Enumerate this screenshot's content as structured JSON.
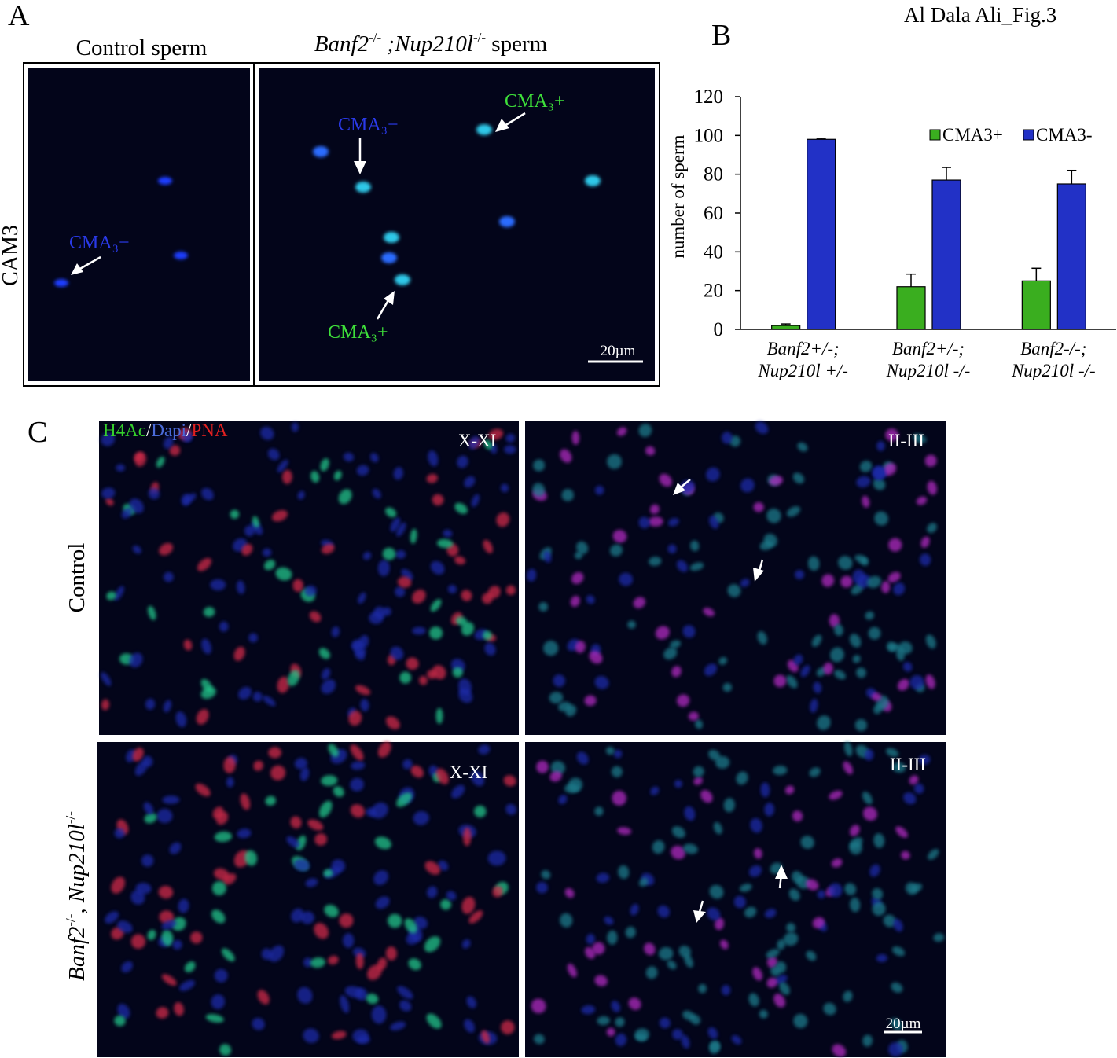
{
  "figure_id": "Al Dala Ali_Fig.3",
  "panel_a": {
    "label": "A",
    "row_label": "CAM3",
    "control_title": "Control sperm",
    "mutant_title": [
      "Banf2",
      "-/-",
      " ;Nup210l",
      "-/-",
      " sperm"
    ],
    "annotations": [
      "CMA₃−",
      "CMA₃−",
      "CMA₃+",
      "CMA₃+"
    ],
    "scale_bar": "20µm"
  },
  "chart_data": {
    "type": "bar",
    "panel_label": "B",
    "y_label": "number of sperm",
    "categories": [
      [
        "Banf2+/-;",
        "Nup210l +/-"
      ],
      [
        "Banf2+/-;",
        "Nup210l -/-"
      ],
      [
        "Banf2-/-;",
        "Nup210l -/-"
      ]
    ],
    "series": [
      {
        "name": "CMA3+",
        "color": "#3aae1f",
        "values": [
          2,
          22,
          25
        ],
        "errors": [
          0.8,
          6.5,
          6.5
        ]
      },
      {
        "name": "CMA3-",
        "color": "#2231c6",
        "values": [
          98,
          77,
          75
        ],
        "errors": [
          0.5,
          6.5,
          7
        ]
      }
    ],
    "ylim": [
      0,
      120
    ],
    "yticks": [
      0,
      20,
      40,
      60,
      80,
      100,
      120
    ],
    "legend": "upper right"
  },
  "panel_c": {
    "label": "C",
    "stain_legend": [
      "H4Ac",
      "/",
      "Dapi",
      "/",
      "PNA"
    ],
    "row_labels": [
      [
        "Control"
      ],
      [
        "Banf2",
        "-/-",
        ", Nup210l",
        "-/-"
      ]
    ],
    "stages": [
      "X-XI",
      "II-III",
      "X-XI",
      "II-III"
    ],
    "scale_bar": "20µm"
  }
}
